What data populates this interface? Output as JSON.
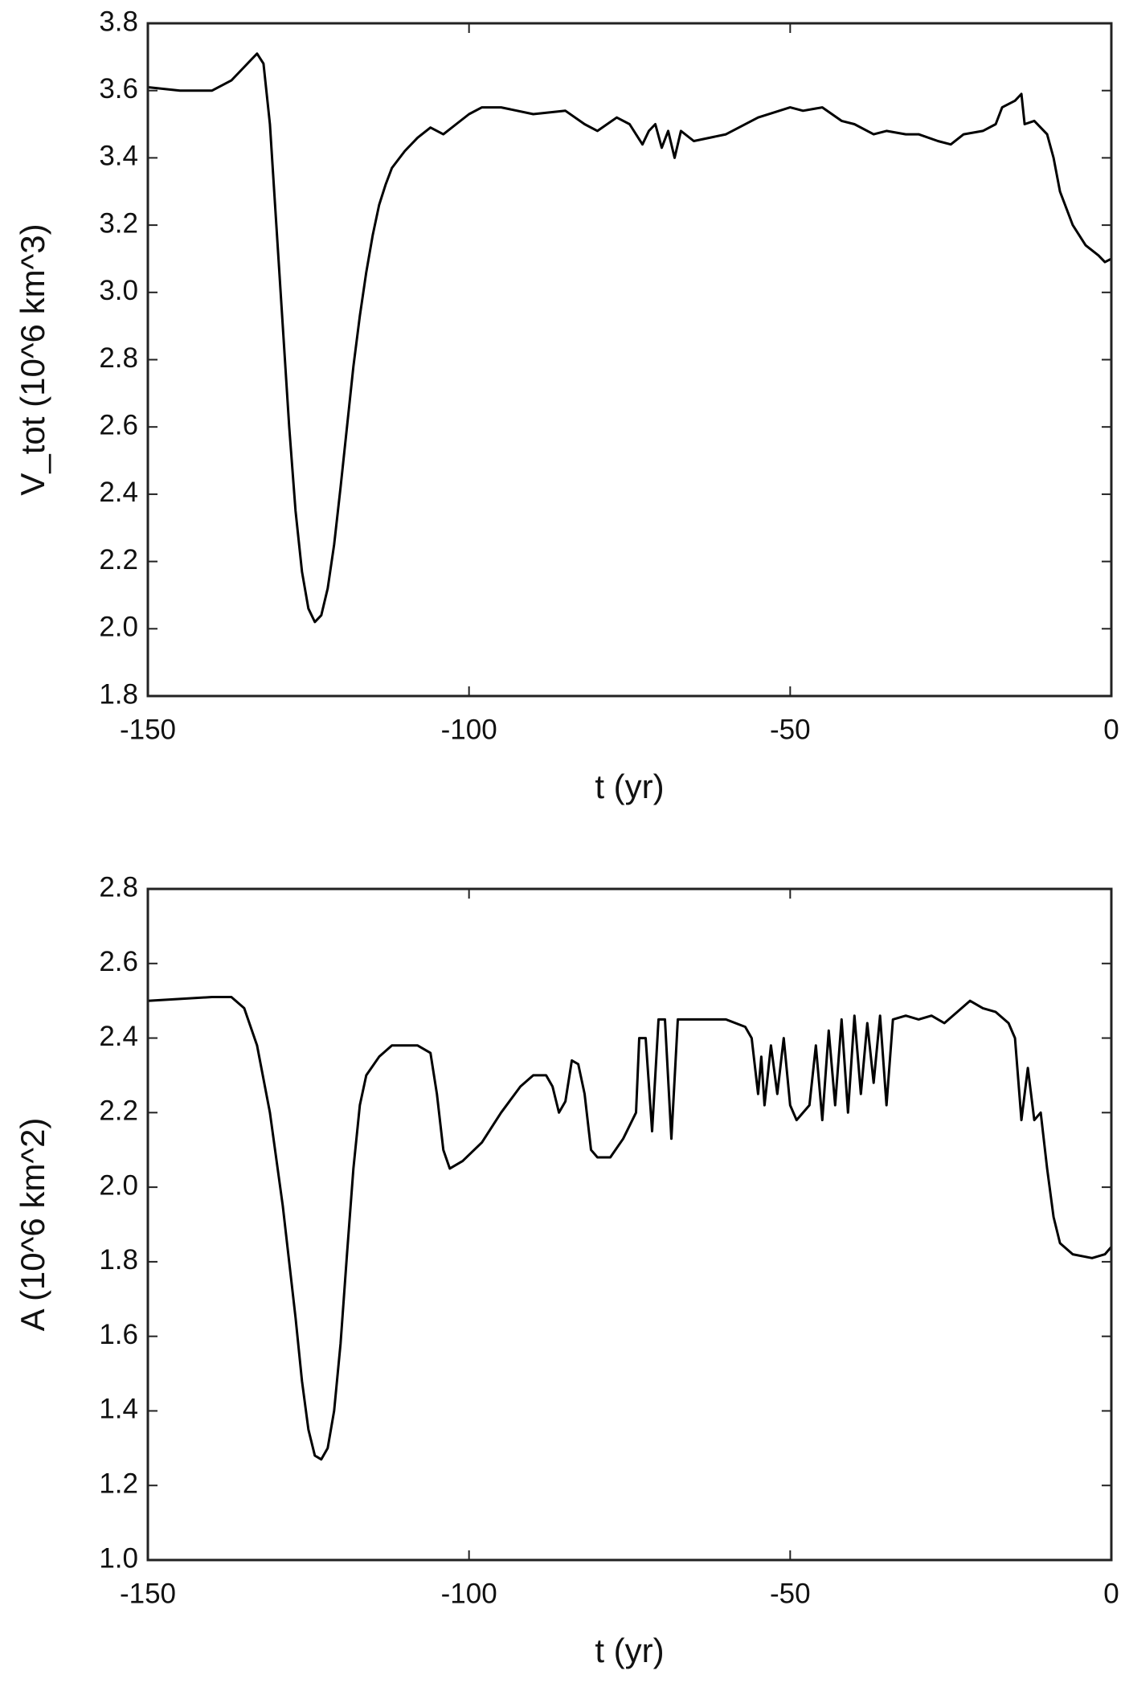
{
  "chart_data": [
    {
      "type": "line",
      "xlabel": "t (yr)",
      "ylabel": "V_tot (10^6 km^3)",
      "color": "#000000",
      "xlim": [
        -150,
        0
      ],
      "xticks": [
        -150,
        -100,
        -50,
        0
      ],
      "ylim": [
        1.8,
        3.8
      ],
      "yticks": [
        1.8,
        {
          "value": 2,
          "label": "2.0"
        },
        2.2,
        2.4,
        2.6,
        2.8,
        {
          "value": 3,
          "label": "3.0"
        },
        3.2,
        3.4,
        3.6,
        3.8
      ],
      "x": [
        -150,
        -145,
        -140,
        -137,
        -134,
        -133,
        -132,
        -131,
        -130,
        -129,
        -128,
        -127,
        -126,
        -125,
        -124,
        -123,
        -122,
        -121,
        -120,
        -119,
        -118,
        -117,
        -116,
        -115,
        -114,
        -113,
        -112,
        -110,
        -108,
        -106,
        -104,
        -102,
        -100,
        -98,
        -95,
        -90,
        -85,
        -82,
        -80,
        -77,
        -75,
        -73,
        -72,
        -71,
        -70,
        -69,
        -68,
        -67,
        -65,
        -60,
        -55,
        -50,
        -48,
        -45,
        -42,
        -40,
        -37,
        -35,
        -32,
        -30,
        -27,
        -25,
        -23,
        -20,
        -18,
        -17,
        -15,
        -14,
        -13.5,
        -12,
        -10,
        -9,
        -8,
        -6,
        -4,
        -2,
        -1,
        0
      ],
      "values": [
        3.61,
        3.6,
        3.6,
        3.63,
        3.69,
        3.71,
        3.68,
        3.5,
        3.2,
        2.9,
        2.6,
        2.35,
        2.17,
        2.06,
        2.02,
        2.04,
        2.12,
        2.25,
        2.42,
        2.6,
        2.78,
        2.93,
        3.06,
        3.17,
        3.26,
        3.32,
        3.37,
        3.42,
        3.46,
        3.49,
        3.47,
        3.5,
        3.53,
        3.55,
        3.55,
        3.53,
        3.54,
        3.5,
        3.48,
        3.52,
        3.5,
        3.44,
        3.48,
        3.5,
        3.43,
        3.48,
        3.4,
        3.48,
        3.45,
        3.47,
        3.52,
        3.55,
        3.54,
        3.55,
        3.51,
        3.5,
        3.47,
        3.48,
        3.47,
        3.47,
        3.45,
        3.44,
        3.47,
        3.48,
        3.5,
        3.55,
        3.57,
        3.59,
        3.5,
        3.51,
        3.47,
        3.4,
        3.3,
        3.2,
        3.14,
        3.11,
        3.09,
        3.1
      ]
    },
    {
      "type": "line",
      "xlabel": "t (yr)",
      "ylabel": "A (10^6 km^2)",
      "color": "#000000",
      "xlim": [
        -150,
        0
      ],
      "xticks": [
        -150,
        -100,
        -50,
        0
      ],
      "ylim": [
        1,
        2.8
      ],
      "yticks": [
        {
          "value": 1,
          "label": "1.0"
        },
        1.2,
        1.4,
        1.6,
        1.8,
        {
          "value": 2,
          "label": "2.0"
        },
        2.2,
        2.4,
        2.6,
        2.8
      ],
      "x": [
        -150,
        -140,
        -137,
        -135,
        -133,
        -131,
        -129,
        -127,
        -126,
        -125,
        -124,
        -123,
        -122,
        -121,
        -120,
        -119,
        -118,
        -117,
        -116,
        -114,
        -112,
        -108,
        -106,
        -105,
        -104,
        -103,
        -101,
        -98,
        -95,
        -92,
        -90,
        -88,
        -87,
        -86,
        -85,
        -84,
        -83,
        -82,
        -81,
        -80,
        -78,
        -76,
        -74,
        -73.5,
        -72.5,
        -71.5,
        -70.5,
        -69.5,
        -68.5,
        -67.5,
        -65,
        -60,
        -57,
        -56,
        -55,
        -54.5,
        -54,
        -53,
        -52,
        -51,
        -50,
        -49,
        -47,
        -46,
        -45,
        -44,
        -43,
        -42,
        -41,
        -40,
        -39,
        -38,
        -37,
        -36,
        -35,
        -34,
        -32,
        -30,
        -28,
        -26,
        -24,
        -22,
        -20,
        -18,
        -16,
        -15,
        -14,
        -13,
        -12,
        -11,
        -10,
        -9,
        -8,
        -6,
        -3,
        -1,
        0
      ],
      "values": [
        2.5,
        2.51,
        2.51,
        2.48,
        2.38,
        2.2,
        1.95,
        1.65,
        1.48,
        1.35,
        1.28,
        1.27,
        1.3,
        1.4,
        1.58,
        1.82,
        2.05,
        2.22,
        2.3,
        2.35,
        2.38,
        2.38,
        2.36,
        2.25,
        2.1,
        2.05,
        2.07,
        2.12,
        2.2,
        2.27,
        2.3,
        2.3,
        2.27,
        2.2,
        2.23,
        2.34,
        2.33,
        2.25,
        2.1,
        2.08,
        2.08,
        2.13,
        2.2,
        2.4,
        2.4,
        2.15,
        2.45,
        2.45,
        2.13,
        2.45,
        2.45,
        2.45,
        2.43,
        2.4,
        2.25,
        2.35,
        2.22,
        2.38,
        2.25,
        2.4,
        2.22,
        2.18,
        2.22,
        2.38,
        2.18,
        2.42,
        2.22,
        2.45,
        2.2,
        2.46,
        2.25,
        2.44,
        2.28,
        2.46,
        2.22,
        2.45,
        2.46,
        2.45,
        2.46,
        2.44,
        2.47,
        2.5,
        2.48,
        2.47,
        2.44,
        2.4,
        2.18,
        2.32,
        2.18,
        2.2,
        2.05,
        1.92,
        1.85,
        1.82,
        1.81,
        1.82,
        1.84
      ]
    }
  ]
}
